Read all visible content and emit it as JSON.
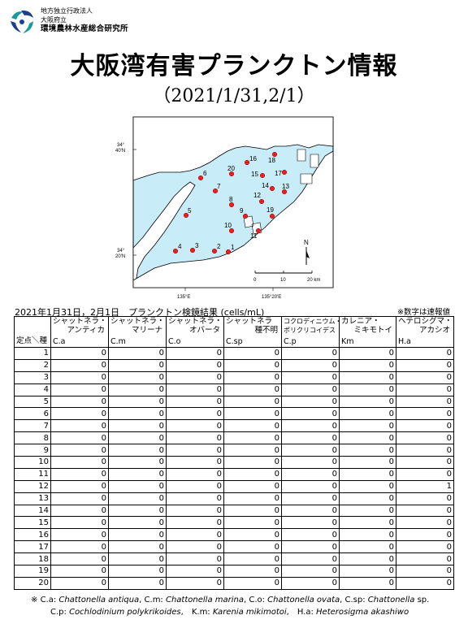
{
  "org": {
    "line1": "地方独立行政法人",
    "line2": "大阪府立",
    "line3": "環境農林水産総合研究所"
  },
  "title": "大阪湾有害プランクトン情報",
  "subtitle": "（2021/1/31,2/1）",
  "map": {
    "lat_top": "34°\n40'N",
    "lat_bottom": "34°\n20'N",
    "lon_left": "135°E",
    "lon_right": "135°20'E",
    "north": "N",
    "scale_labels": [
      "0",
      "10",
      "20 km"
    ],
    "stations": [
      "1",
      "2",
      "3",
      "4",
      "5",
      "6",
      "7",
      "8",
      "9",
      "10",
      "11",
      "12",
      "13",
      "14",
      "15",
      "16",
      "17",
      "18",
      "19",
      "20"
    ]
  },
  "results_caption": "2021年1月31日，2月1日　プランクトン検鏡結果 (cells/mL)",
  "note": "※数字は速報値",
  "table": {
    "corner": "定点＼種",
    "columns": [
      {
        "line1": "シャットネラ・",
        "line2": "アンティカ",
        "abbr": "C.a"
      },
      {
        "line1": "シャットネラ・",
        "line2": "マリーナ",
        "abbr": "C.m"
      },
      {
        "line1": "シャットネラ・",
        "line2": "オバータ",
        "abbr": "C.o"
      },
      {
        "line1": "シャットネラ",
        "line2": "種不明",
        "abbr": "C.sp"
      },
      {
        "line1": "コクロディニウム・",
        "line2": "ポリクリコイデス",
        "abbr": "C.p"
      },
      {
        "line1": "カレニア・",
        "line2": "ミキモトイ",
        "abbr": "Km"
      },
      {
        "line1": "ヘテロシグマ・",
        "line2": "アカシオ",
        "abbr": "H.a"
      }
    ],
    "rows": [
      {
        "station": "1",
        "values": [
          "0",
          "0",
          "0",
          "0",
          "0",
          "0",
          "0"
        ]
      },
      {
        "station": "2",
        "values": [
          "0",
          "0",
          "0",
          "0",
          "0",
          "0",
          "0"
        ]
      },
      {
        "station": "3",
        "values": [
          "0",
          "0",
          "0",
          "0",
          "0",
          "0",
          "0"
        ]
      },
      {
        "station": "4",
        "values": [
          "0",
          "0",
          "0",
          "0",
          "0",
          "0",
          "0"
        ]
      },
      {
        "station": "5",
        "values": [
          "0",
          "0",
          "0",
          "0",
          "0",
          "0",
          "0"
        ]
      },
      {
        "station": "6",
        "values": [
          "0",
          "0",
          "0",
          "0",
          "0",
          "0",
          "0"
        ]
      },
      {
        "station": "7",
        "values": [
          "0",
          "0",
          "0",
          "0",
          "0",
          "0",
          "0"
        ]
      },
      {
        "station": "8",
        "values": [
          "0",
          "0",
          "0",
          "0",
          "0",
          "0",
          "0"
        ]
      },
      {
        "station": "9",
        "values": [
          "0",
          "0",
          "0",
          "0",
          "0",
          "0",
          "0"
        ]
      },
      {
        "station": "10",
        "values": [
          "0",
          "0",
          "0",
          "0",
          "0",
          "0",
          "0"
        ]
      },
      {
        "station": "11",
        "values": [
          "0",
          "0",
          "0",
          "0",
          "0",
          "0",
          "0"
        ]
      },
      {
        "station": "12",
        "values": [
          "0",
          "0",
          "0",
          "0",
          "0",
          "0",
          "1"
        ]
      },
      {
        "station": "13",
        "values": [
          "0",
          "0",
          "0",
          "0",
          "0",
          "0",
          "0"
        ]
      },
      {
        "station": "14",
        "values": [
          "0",
          "0",
          "0",
          "0",
          "0",
          "0",
          "0"
        ]
      },
      {
        "station": "15",
        "values": [
          "0",
          "0",
          "0",
          "0",
          "0",
          "0",
          "0"
        ]
      },
      {
        "station": "16",
        "values": [
          "0",
          "0",
          "0",
          "0",
          "0",
          "0",
          "0"
        ]
      },
      {
        "station": "17",
        "values": [
          "0",
          "0",
          "0",
          "0",
          "0",
          "0",
          "0"
        ]
      },
      {
        "station": "18",
        "values": [
          "0",
          "0",
          "0",
          "0",
          "0",
          "0",
          "0"
        ]
      },
      {
        "station": "19",
        "values": [
          "0",
          "0",
          "0",
          "0",
          "0",
          "0",
          "0"
        ]
      },
      {
        "station": "20",
        "values": [
          "0",
          "0",
          "0",
          "0",
          "0",
          "0",
          "0"
        ]
      }
    ]
  },
  "footnote": {
    "mark": "※",
    "line1": [
      {
        "abbr": "C.a: ",
        "name": "Chattonella antiqua",
        "sep": ", "
      },
      {
        "abbr": "C.m: ",
        "name": "Chattonella marina",
        "sep": ", "
      },
      {
        "abbr": "C.o: ",
        "name": "Chattonella ovata",
        "sep": ", "
      },
      {
        "abbr": "C.sp: ",
        "name": "Chattonella",
        "sep": " sp."
      }
    ],
    "line2": [
      {
        "abbr": "C.p: ",
        "name": "Cochlodinium polykrikoides",
        "sep": ",　"
      },
      {
        "abbr": "K.m: ",
        "name": "Karenia mikimotoi",
        "sep": ",　"
      },
      {
        "abbr": "H.a: ",
        "name": "Heterosigma akashiwo",
        "sep": ""
      }
    ]
  },
  "colors": {
    "sea": "#c8ecf8",
    "land": "#ffffff",
    "station": "#e82020",
    "logo_teal": "#1a9aa0",
    "logo_blue": "#1d3f8e"
  }
}
